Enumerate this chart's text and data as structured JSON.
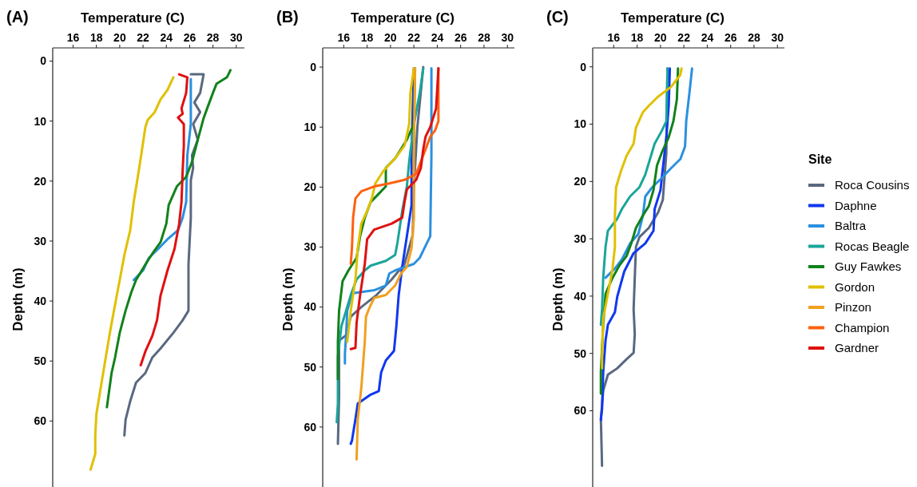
{
  "chart_data": [
    {
      "type": "line",
      "title": "(A)",
      "xlabel": "Temperature (C)",
      "ylabel": "Depth (m)",
      "xlim": [
        14.25,
        30.7
      ],
      "xticks": [
        16,
        18,
        20,
        22,
        24,
        26,
        28,
        30
      ],
      "ylim": [
        71,
        -2.2
      ],
      "yticks": [
        0,
        10,
        20,
        30,
        40,
        50,
        60
      ],
      "grid": false,
      "legend": false,
      "series": [
        {
          "color": "#5a6880",
          "x": [
            26.1,
            27.2,
            26.9,
            26.4,
            26.9,
            26.3,
            26.7,
            26.2,
            26.3,
            26.1,
            26.1,
            25.9,
            25.9,
            25.4,
            24.6,
            23.5,
            22.8,
            22.2,
            21.4,
            20.9,
            20.5,
            20.4
          ],
          "values": [
            2.2,
            2.2,
            5.3,
            6.9,
            8.5,
            10.5,
            13.1,
            15.7,
            17.8,
            19.9,
            26.1,
            33.9,
            41.6,
            43.2,
            45.3,
            47.9,
            49.4,
            52,
            53.6,
            56.7,
            59.8,
            62.4
          ]
        },
        {
          "color": "#2a90e0",
          "x": [
            26.1,
            26.1,
            25.8,
            25.7,
            25.4,
            25,
            24.1,
            23.3,
            22.5,
            22,
            21.2
          ],
          "values": [
            3,
            10.5,
            15.7,
            23.5,
            26.1,
            28.2,
            29.7,
            31.3,
            32.8,
            34.9,
            36.5
          ]
        },
        {
          "color": "#11821a",
          "x": [
            29.5,
            29.2,
            28.3,
            28,
            27.5,
            27.2,
            26.7,
            26.2,
            25.7,
            24.9,
            24.2,
            24,
            23.5,
            22.8,
            22.2,
            21.4,
            21,
            20.5,
            20,
            19.6,
            19.3,
            18.9
          ],
          "values": [
            1.5,
            2.7,
            3.8,
            5.3,
            7.9,
            9.5,
            13.1,
            16.8,
            19.3,
            20.9,
            24,
            27.1,
            30.2,
            32.1,
            33.9,
            36.5,
            38.5,
            41.6,
            45.3,
            49.4,
            52,
            57.7
          ]
        },
        {
          "color": "#e0c000",
          "x": [
            24.6,
            24.1,
            23.5,
            23,
            22.4,
            22.2,
            21.8,
            21.5,
            21.2,
            20.9,
            20.4,
            20,
            19.6,
            19.2,
            18.8,
            18.4,
            18,
            17.9,
            17.9,
            17.5
          ],
          "values": [
            2.7,
            4.8,
            6.4,
            8.5,
            9.8,
            11,
            16.2,
            19.9,
            23.5,
            28.2,
            32.3,
            36.5,
            40.6,
            44.8,
            49.4,
            54.1,
            58.8,
            62.4,
            65.5,
            68.1
          ]
        },
        {
          "color": "#e01010",
          "x": [
            25.1,
            25.8,
            25.7,
            25.3,
            25.4,
            25,
            25.5,
            25.5,
            25.4,
            25.3,
            25.1,
            24.7,
            24.1,
            23.5,
            23.2,
            22.8,
            22.2,
            21.8
          ],
          "values": [
            2.2,
            2.7,
            5.3,
            7.9,
            8.8,
            9.4,
            10.5,
            14.2,
            18.3,
            23.5,
            27.1,
            31.3,
            34.9,
            39.1,
            43.2,
            45.8,
            48.4,
            50.7
          ]
        }
      ]
    },
    {
      "type": "line",
      "title": "(B)",
      "xlabel": "Temperature (C)",
      "ylabel": "Depth (m)",
      "xlim": [
        14.2,
        30.6
      ],
      "xticks": [
        16,
        18,
        20,
        22,
        24,
        26,
        28,
        30
      ],
      "ylim": [
        70,
        -3.2
      ],
      "yticks": [
        0,
        10,
        20,
        30,
        40,
        50,
        60
      ],
      "grid": false,
      "legend": "right",
      "legend_title": "Site",
      "series": [
        {
          "name": "Roca Cousins",
          "color": "#5a6880",
          "x": [
            22.8,
            22.3,
            22,
            21.9,
            21.2,
            20.1,
            18.8,
            17.5,
            16.6,
            16.2,
            15.6,
            15.6,
            15.5
          ],
          "values": [
            0,
            10,
            20,
            28,
            32.8,
            35.4,
            38,
            40,
            41.6,
            44.7,
            45.6,
            55,
            62.8
          ]
        },
        {
          "name": "Daphne",
          "color": "#1038f0",
          "x": [
            22,
            21.8,
            21.8,
            21.4,
            21,
            20.7,
            20.5,
            20.3,
            19.6,
            19.2,
            19,
            18.3,
            17.2,
            17,
            16.7,
            16.6
          ],
          "values": [
            0.2,
            14.7,
            23,
            28.2,
            33.3,
            38,
            43.2,
            47.3,
            48.9,
            50.9,
            54,
            54.6,
            56.1,
            58.7,
            62.3,
            62.8
          ]
        },
        {
          "name": "Baltra",
          "color": "#2a90e0",
          "x": [
            23.5,
            23.5,
            23.4,
            22.9,
            22.5,
            22,
            20.4,
            19.9,
            19.6,
            18.6,
            16.8,
            16.6,
            16.3,
            16.2,
            16.1,
            16.1
          ],
          "values": [
            0.2,
            14.7,
            28.2,
            30.2,
            31.8,
            32.8,
            33.9,
            34.4,
            36.4,
            37.2,
            37.7,
            38.5,
            40.6,
            44.7,
            47.8,
            49.4
          ]
        },
        {
          "name": "Rocas Beagle",
          "color": "#1aa59a",
          "x": [
            22.8,
            22.5,
            22,
            21.6,
            21.4,
            21,
            20.6,
            20.4,
            19.6,
            18.3,
            17.8,
            17.1,
            16.6,
            16.2,
            15.8,
            15.5,
            15.5,
            15.4
          ],
          "values": [
            0.2,
            4.3,
            9.5,
            15.7,
            19.9,
            24,
            29.2,
            31.3,
            32.3,
            33.1,
            33.9,
            35.4,
            38,
            40.6,
            43.2,
            48.3,
            56.1,
            59.2
          ]
        },
        {
          "name": "Guy Fawkes",
          "color": "#11821a",
          "x": [
            22.1,
            22,
            21.4,
            20.4,
            19.6,
            19.6,
            19.1,
            18.3,
            17.8,
            17.4,
            17.1,
            16.4,
            15.9,
            15.6,
            15.5,
            15.5
          ],
          "values": [
            0.2,
            9.5,
            12.1,
            15.2,
            16.8,
            19.9,
            20.9,
            22.5,
            25.1,
            28.2,
            31.8,
            33.9,
            35.7,
            40.6,
            45.8,
            52
          ]
        },
        {
          "name": "Gordon",
          "color": "#e0c000",
          "x": [
            22,
            21.7,
            21.6,
            21.2,
            20.4,
            19.4,
            18.7,
            18.4,
            18,
            17.5,
            17.2,
            17,
            16.6,
            16.3
          ],
          "values": [
            0.2,
            4.3,
            9.5,
            13.1,
            15.2,
            17.3,
            19.4,
            21.9,
            24,
            26.1,
            30.2,
            35.4,
            40.6,
            45.8
          ]
        },
        {
          "name": "Pinzon",
          "color": "#f0a020",
          "x": [
            22.1,
            22,
            22,
            21.8,
            21.4,
            20.9,
            20.4,
            19.6,
            18.6,
            18.2,
            17.9,
            17.8,
            17.5,
            17.2,
            17.1
          ],
          "values": [
            0.2,
            14.7,
            25.1,
            30.2,
            33.3,
            34.4,
            36.4,
            38,
            38.5,
            40.1,
            41.6,
            45.8,
            53.5,
            58.7,
            65.4
          ]
        },
        {
          "name": "Champion",
          "color": "#ff6010",
          "x": [
            24.1,
            24.1,
            23.8,
            23.4,
            23,
            22.6,
            22.2,
            21.2,
            19.9,
            18.6,
            17.5,
            17,
            16.8,
            16.7,
            16.6
          ],
          "values": [
            0.2,
            9,
            10.6,
            11.6,
            13.7,
            15.7,
            17.8,
            18.8,
            19.4,
            19.9,
            20.7,
            21.9,
            25.1,
            30.2,
            32.8
          ]
        },
        {
          "name": "Gardner",
          "color": "#e01010",
          "x": [
            24.1,
            23.9,
            23.4,
            23,
            22.8,
            22.6,
            22.2,
            21.4,
            21.2,
            21,
            20.1,
            18.6,
            18,
            17.8,
            17.4,
            17.1,
            17,
            16.6
          ],
          "values": [
            0.2,
            6.9,
            10,
            11.6,
            13.7,
            16.8,
            18.8,
            20.4,
            22.5,
            25.1,
            26.1,
            27.1,
            28.7,
            32.8,
            38,
            42.6,
            46.8,
            47
          ]
        }
      ]
    },
    {
      "type": "line",
      "title": "(C)",
      "xlabel": "Temperature (C)",
      "ylabel": "Depth (m)",
      "xlim": [
        14.2,
        30.6
      ],
      "xticks": [
        16,
        18,
        20,
        22,
        24,
        26,
        28,
        30
      ],
      "ylim": [
        73.3,
        -3.3
      ],
      "yticks": [
        0,
        10,
        20,
        30,
        40,
        50,
        60
      ],
      "grid": false,
      "legend": false,
      "series": [
        {
          "color": "#5a6880",
          "x": [
            20.6,
            20.5,
            20.2,
            19.8,
            19,
            18.2,
            17.9,
            17.8,
            17.7,
            17.8,
            17.7,
            17.1,
            16.3,
            15.5,
            15.1,
            14.9,
            15
          ],
          "values": [
            0.3,
            15,
            23.2,
            25.4,
            28.1,
            29.7,
            31.4,
            36.8,
            42.3,
            46.6,
            49.9,
            51,
            52.6,
            53.7,
            56.5,
            61.4,
            69.6
          ]
        },
        {
          "color": "#1038f0",
          "x": [
            20.8,
            20.7,
            20.5,
            20.2,
            20,
            19.5,
            19.4,
            18.7,
            17.7,
            16.9,
            16.3,
            16.1,
            15.5,
            15.3,
            15.1,
            15,
            14.9
          ],
          "values": [
            0.3,
            6.8,
            12.3,
            17.7,
            21.5,
            24.8,
            28.6,
            30.8,
            32.5,
            35.7,
            40.1,
            42.8,
            45,
            47.7,
            53.2,
            59.7,
            61.6
          ]
        },
        {
          "color": "#2a90e0",
          "x": [
            22.7,
            22.5,
            22.2,
            22.1,
            21.7,
            20.9,
            20.1,
            19.3,
            18.7,
            18.5,
            18.1,
            17.4,
            16.7,
            16.1,
            15.3
          ],
          "values": [
            0.3,
            4.1,
            9.5,
            13.9,
            16.1,
            17.7,
            19.4,
            21,
            22.6,
            25.9,
            29.2,
            30.8,
            33.6,
            35.2,
            36.8
          ]
        },
        {
          "color": "#1aa59a",
          "x": [
            20.6,
            20.5,
            20.1,
            19.5,
            19.1,
            18.7,
            18.2,
            17.4,
            16.7,
            16.3,
            15.5,
            15.3,
            15.1,
            15,
            14.9
          ],
          "values": [
            0.3,
            9.5,
            11.2,
            13.4,
            16.1,
            18.8,
            21,
            22.6,
            24.8,
            26.5,
            28.6,
            31.4,
            36.8,
            42.3,
            45
          ]
        },
        {
          "color": "#11821a",
          "x": [
            21.5,
            21.4,
            21.1,
            20.7,
            20.1,
            19.7,
            19.4,
            19,
            18.5,
            17.9,
            17.5,
            17.1,
            16.5,
            15.9,
            15.3,
            15.1,
            14.9,
            14.9
          ],
          "values": [
            0.3,
            5.7,
            9.5,
            12.3,
            15,
            17.2,
            21.5,
            24.3,
            25.9,
            28.1,
            30.8,
            33,
            34.6,
            36.8,
            39.6,
            45,
            53.2,
            57
          ]
        },
        {
          "color": "#e0c000",
          "x": [
            21.8,
            21.7,
            20.9,
            19.8,
            19,
            18.5,
            17.9,
            17.7,
            17.1,
            16.6,
            16.2,
            16.1,
            16.1,
            15.9,
            15.5,
            15.1,
            15,
            15
          ],
          "values": [
            0.3,
            1.4,
            3.5,
            5.2,
            6.8,
            7.9,
            10.6,
            13.4,
            15.5,
            18.3,
            21,
            25.9,
            31.4,
            35.2,
            39.6,
            43.9,
            50.5,
            52.6
          ]
        }
      ]
    }
  ]
}
